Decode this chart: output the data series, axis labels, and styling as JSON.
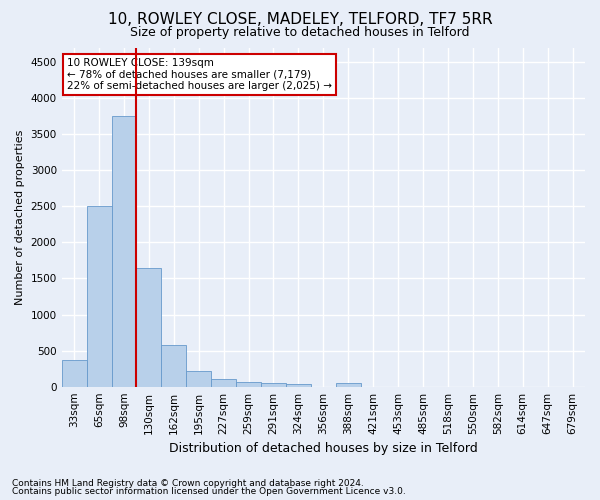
{
  "title": "10, ROWLEY CLOSE, MADELEY, TELFORD, TF7 5RR",
  "subtitle": "Size of property relative to detached houses in Telford",
  "xlabel": "Distribution of detached houses by size in Telford",
  "ylabel": "Number of detached properties",
  "footer1": "Contains HM Land Registry data © Crown copyright and database right 2024.",
  "footer2": "Contains public sector information licensed under the Open Government Licence v3.0.",
  "categories": [
    "33sqm",
    "65sqm",
    "98sqm",
    "130sqm",
    "162sqm",
    "195sqm",
    "227sqm",
    "259sqm",
    "291sqm",
    "324sqm",
    "356sqm",
    "388sqm",
    "421sqm",
    "453sqm",
    "485sqm",
    "518sqm",
    "550sqm",
    "582sqm",
    "614sqm",
    "647sqm",
    "679sqm"
  ],
  "values": [
    370,
    2500,
    3750,
    1640,
    580,
    220,
    110,
    65,
    45,
    40,
    0,
    55,
    0,
    0,
    0,
    0,
    0,
    0,
    0,
    0,
    0
  ],
  "bar_color": "#b8d0ea",
  "bar_edge_color": "#6699cc",
  "vline_x_index": 3,
  "vline_color": "#cc0000",
  "annotation_text": "10 ROWLEY CLOSE: 139sqm\n← 78% of detached houses are smaller (7,179)\n22% of semi-detached houses are larger (2,025) →",
  "annotation_box_color": "#ffffff",
  "annotation_box_edge": "#cc0000",
  "ylim": [
    0,
    4700
  ],
  "yticks": [
    0,
    500,
    1000,
    1500,
    2000,
    2500,
    3000,
    3500,
    4000,
    4500
  ],
  "background_color": "#e8eef8",
  "plot_bg_color": "#e8eef8",
  "grid_color": "#ffffff",
  "title_fontsize": 11,
  "subtitle_fontsize": 9,
  "ylabel_fontsize": 8,
  "xlabel_fontsize": 9,
  "tick_fontsize": 7.5,
  "footer_fontsize": 6.5
}
